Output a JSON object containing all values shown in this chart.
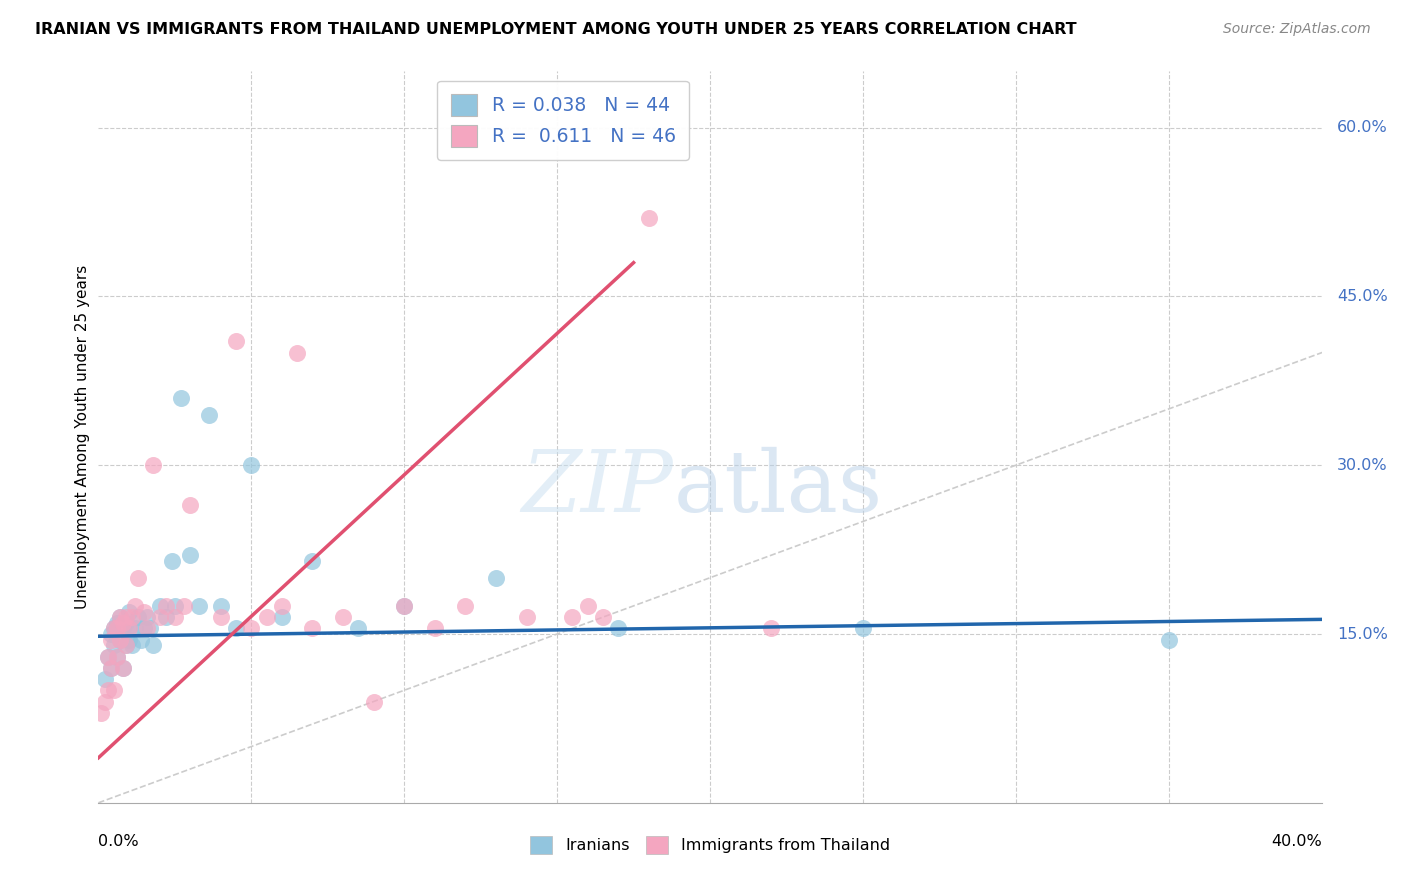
{
  "title": "IRANIAN VS IMMIGRANTS FROM THAILAND UNEMPLOYMENT AMONG YOUTH UNDER 25 YEARS CORRELATION CHART",
  "source": "Source: ZipAtlas.com",
  "ylabel": "Unemployment Among Youth under 25 years",
  "xlim": [
    0.0,
    0.4
  ],
  "ylim": [
    0.0,
    0.65
  ],
  "blue_color": "#92c5de",
  "pink_color": "#f4a6c0",
  "blue_line_color": "#2166ac",
  "pink_line_color": "#e05070",
  "diag_color": "#cccccc",
  "watermark_zip": "ZIP",
  "watermark_atlas": "atlas",
  "legend_R_blue": "0.038",
  "legend_N_blue": "44",
  "legend_R_pink": "0.611",
  "legend_N_pink": "46",
  "legend_bottom": [
    "Iranians",
    "Immigrants from Thailand"
  ],
  "blue_line_x0": 0.0,
  "blue_line_y0": 0.148,
  "blue_line_x1": 0.4,
  "blue_line_y1": 0.163,
  "pink_line_x0": 0.0,
  "pink_line_y0": 0.04,
  "pink_line_x1": 0.175,
  "pink_line_y1": 0.48,
  "iranians_x": [
    0.002,
    0.003,
    0.004,
    0.004,
    0.005,
    0.005,
    0.006,
    0.006,
    0.007,
    0.007,
    0.008,
    0.008,
    0.009,
    0.009,
    0.01,
    0.01,
    0.01,
    0.011,
    0.012,
    0.013,
    0.014,
    0.015,
    0.016,
    0.017,
    0.018,
    0.02,
    0.022,
    0.024,
    0.025,
    0.027,
    0.03,
    0.033,
    0.036,
    0.04,
    0.045,
    0.05,
    0.06,
    0.07,
    0.085,
    0.1,
    0.13,
    0.17,
    0.25,
    0.35
  ],
  "iranians_y": [
    0.11,
    0.13,
    0.12,
    0.15,
    0.14,
    0.155,
    0.13,
    0.16,
    0.145,
    0.165,
    0.12,
    0.155,
    0.14,
    0.16,
    0.145,
    0.155,
    0.17,
    0.14,
    0.155,
    0.165,
    0.145,
    0.155,
    0.165,
    0.155,
    0.14,
    0.175,
    0.165,
    0.215,
    0.175,
    0.36,
    0.22,
    0.175,
    0.345,
    0.175,
    0.155,
    0.3,
    0.165,
    0.215,
    0.155,
    0.175,
    0.2,
    0.155,
    0.155,
    0.145
  ],
  "thailand_x": [
    0.001,
    0.002,
    0.003,
    0.003,
    0.004,
    0.004,
    0.005,
    0.005,
    0.006,
    0.006,
    0.007,
    0.007,
    0.008,
    0.008,
    0.009,
    0.009,
    0.01,
    0.011,
    0.012,
    0.013,
    0.015,
    0.016,
    0.018,
    0.02,
    0.022,
    0.025,
    0.028,
    0.03,
    0.04,
    0.045,
    0.05,
    0.055,
    0.06,
    0.065,
    0.07,
    0.08,
    0.09,
    0.1,
    0.11,
    0.12,
    0.14,
    0.155,
    0.16,
    0.165,
    0.18,
    0.22
  ],
  "thailand_y": [
    0.08,
    0.09,
    0.1,
    0.13,
    0.12,
    0.145,
    0.1,
    0.155,
    0.13,
    0.155,
    0.145,
    0.165,
    0.12,
    0.16,
    0.14,
    0.165,
    0.155,
    0.165,
    0.175,
    0.2,
    0.17,
    0.155,
    0.3,
    0.165,
    0.175,
    0.165,
    0.175,
    0.265,
    0.165,
    0.41,
    0.155,
    0.165,
    0.175,
    0.4,
    0.155,
    0.165,
    0.09,
    0.175,
    0.155,
    0.175,
    0.165,
    0.165,
    0.175,
    0.165,
    0.52,
    0.155
  ]
}
